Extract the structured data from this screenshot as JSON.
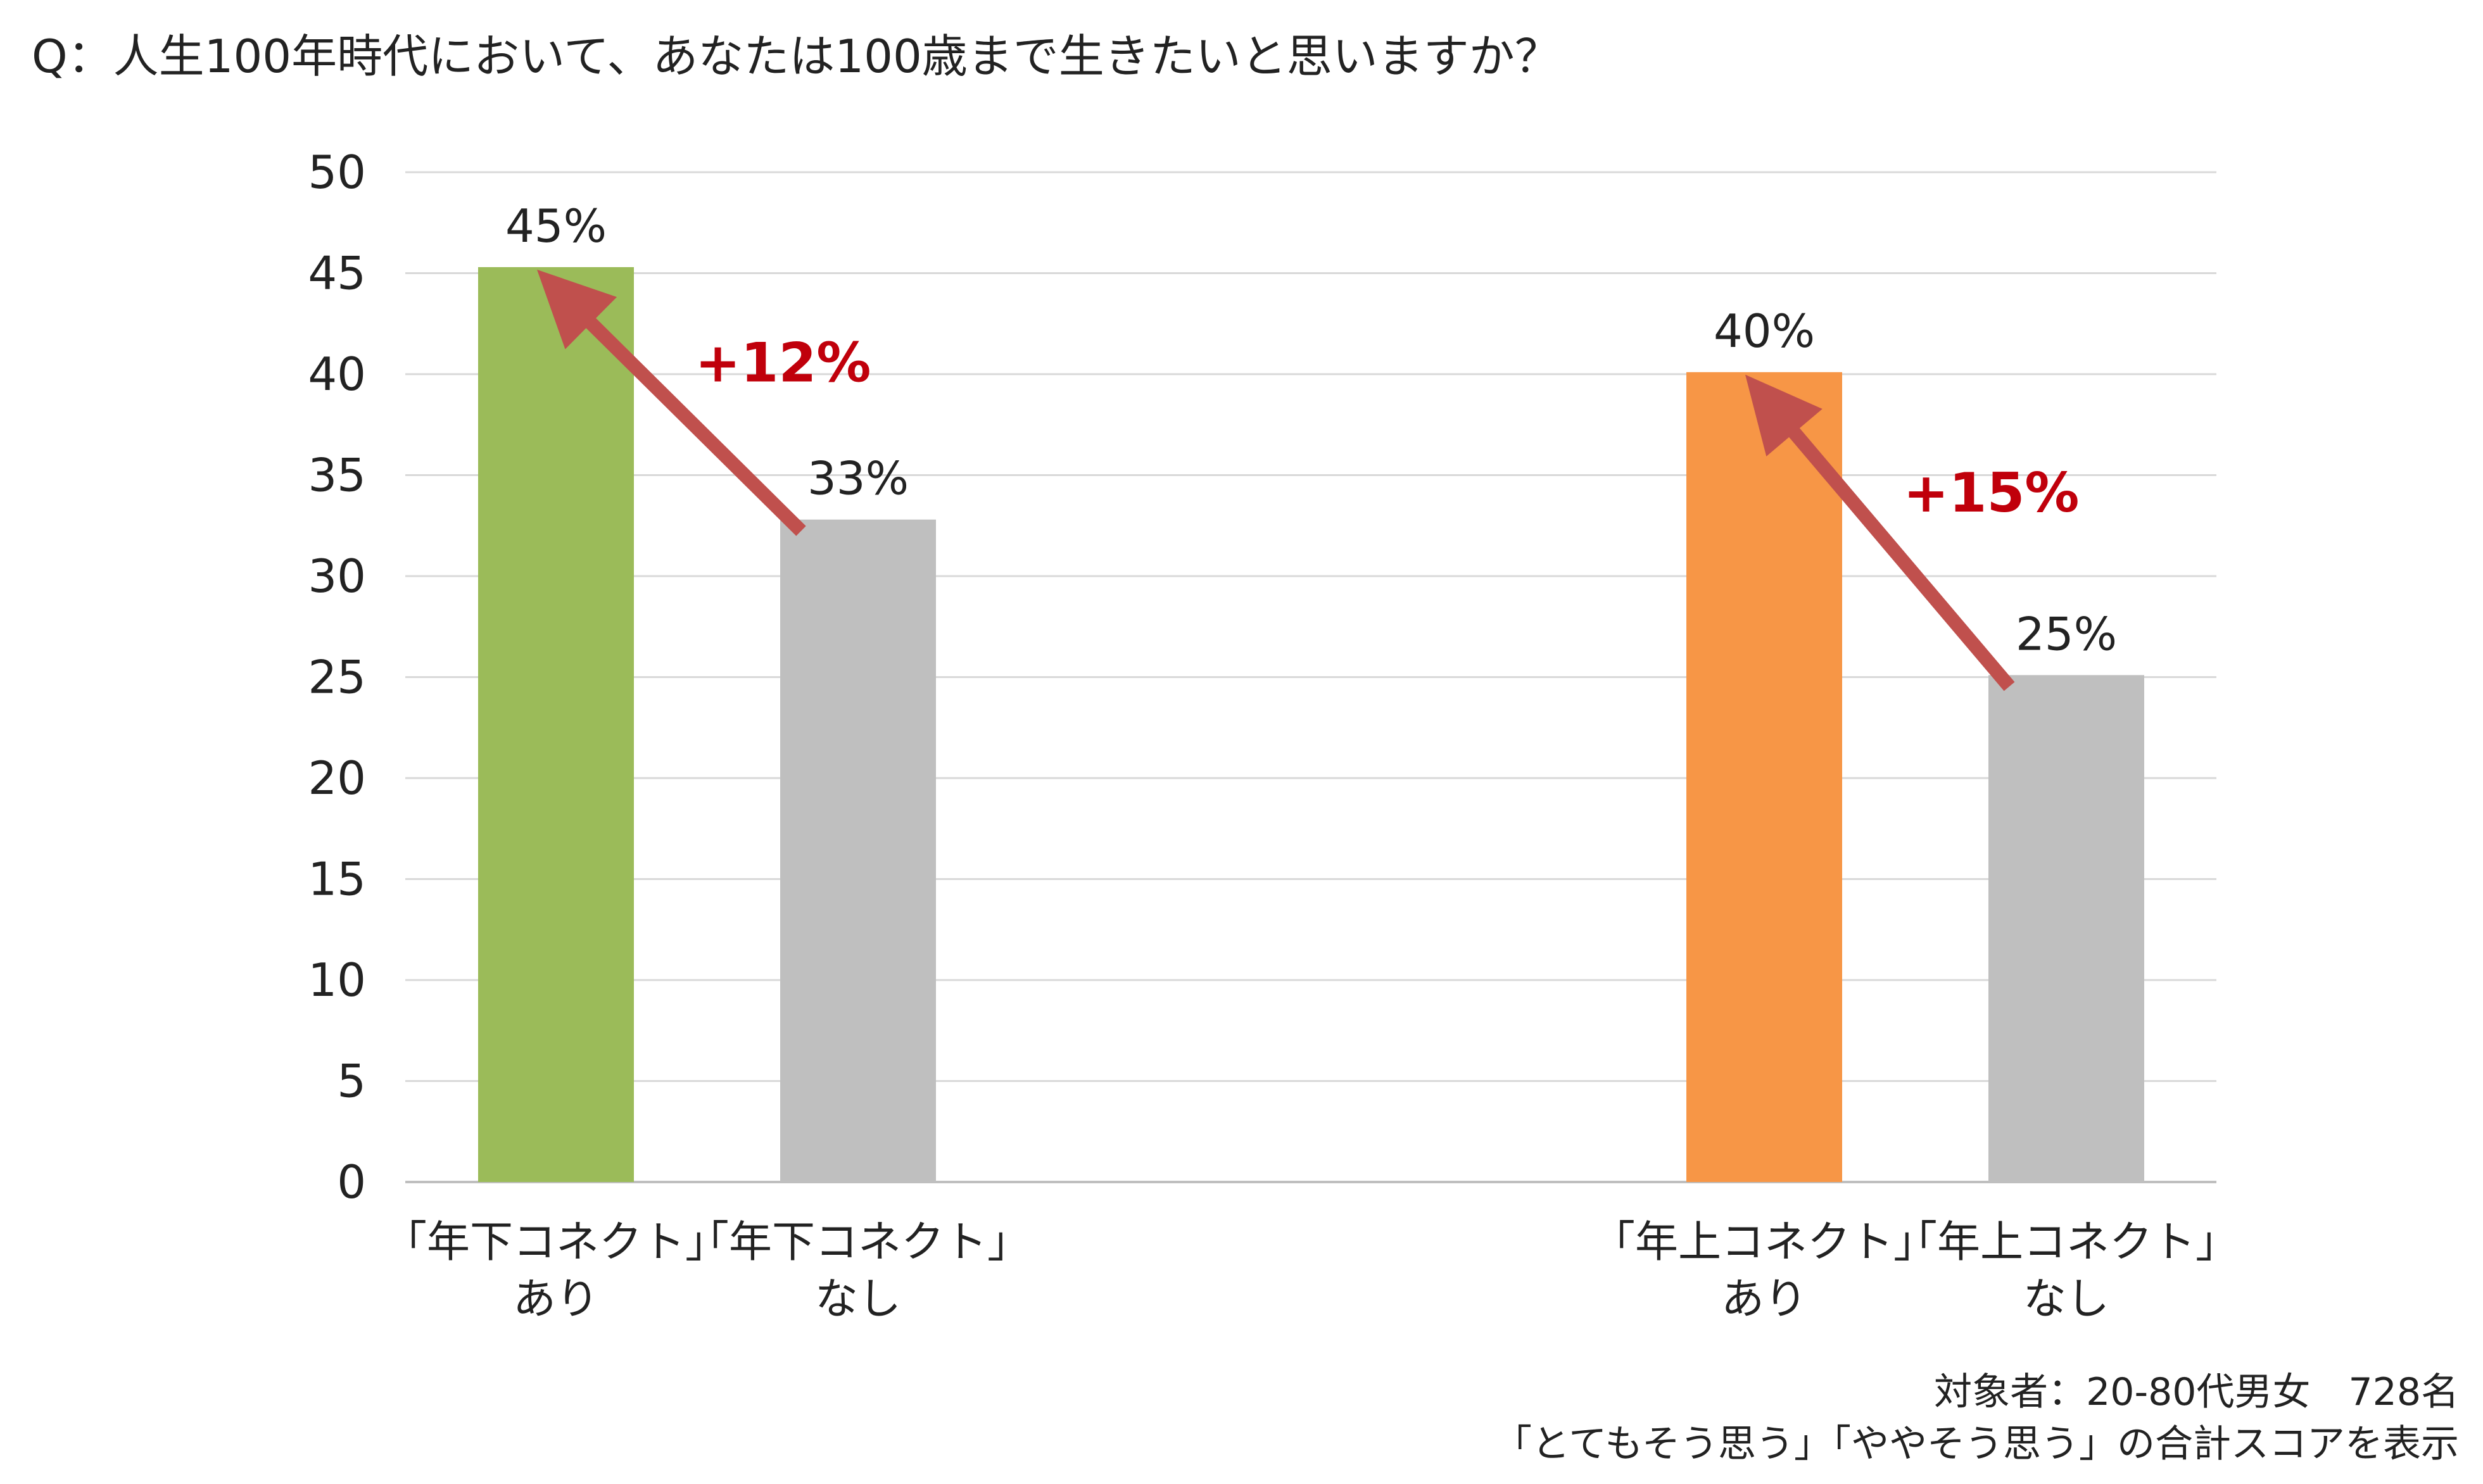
{
  "title": "Q：人生100年時代において、あなたは100歳まで生きたいと思いますか？",
  "footnote_line1": "対象者：20-80代男女　728名",
  "footnote_line2": "「とてもそう思う」「ややそう思う」の合計スコアを表示",
  "chart_data": {
    "type": "bar",
    "ylim": [
      0,
      50
    ],
    "yticks": [
      0,
      5,
      10,
      15,
      20,
      25,
      30,
      35,
      40,
      45,
      50
    ],
    "grid": true,
    "bars": [
      {
        "label_line1": "「年下コネクト」",
        "label_line2": "あり",
        "value": 45.3,
        "data_label": "45%",
        "color": "#9BBB59"
      },
      {
        "label_line1": "「年下コネクト」",
        "label_line2": "なし",
        "value": 32.8,
        "data_label": "33%",
        "color": "#BFBFBF"
      },
      {
        "label_line1": "「年上コネクト」",
        "label_line2": "あり",
        "value": 40.1,
        "data_label": "40%",
        "color": "#F79646"
      },
      {
        "label_line1": "「年上コネクト」",
        "label_line2": "なし",
        "value": 25.1,
        "data_label": "25%",
        "color": "#BFBFBF"
      }
    ],
    "annotations": [
      {
        "text": "+12%",
        "from_bar": 1,
        "to_bar": 0
      },
      {
        "text": "+15%",
        "from_bar": 3,
        "to_bar": 2
      }
    ],
    "colors": {
      "annotation": "#C0000B",
      "arrow": "#C0504D",
      "grid": "#D9D9D9",
      "axis": "#BFBFBF"
    }
  }
}
